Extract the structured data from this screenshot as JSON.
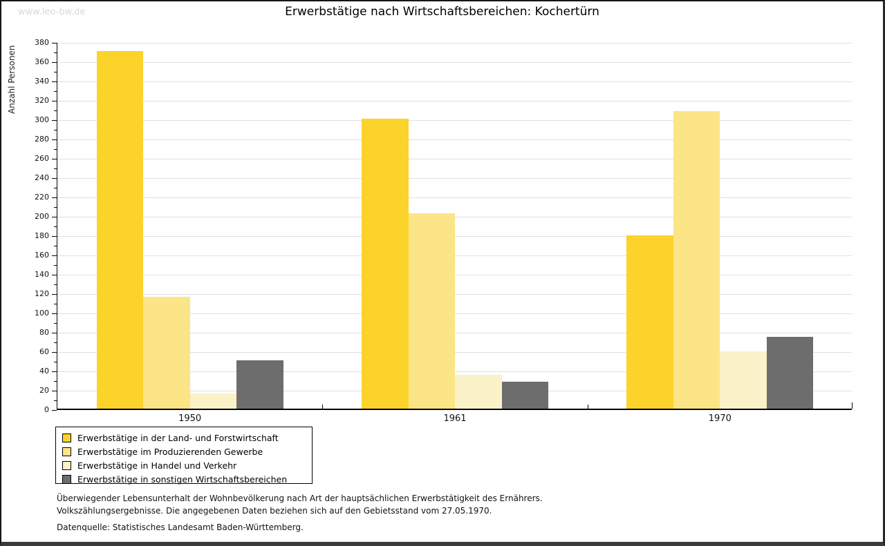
{
  "watermark": "www.leo-bw.de",
  "title": "Erwerbstätige nach Wirtschaftsbereichen: Kochertürn",
  "chart_data": {
    "type": "bar",
    "title": "Erwerbstätige nach Wirtschaftsbereichen: Kochertürn",
    "xlabel": "",
    "ylabel": "Anzahl Personen",
    "ylim": [
      0,
      380
    ],
    "ytick_major_step": 20,
    "ytick_minor_step": 10,
    "grid": true,
    "legend_position": "bottom-left",
    "categories": [
      "1950",
      "1961",
      "1970"
    ],
    "series": [
      {
        "name": "Erwerbstätige in der Land- und Forstwirtschaft",
        "color": "#FBD32B",
        "values": [
          370,
          300,
          179
        ]
      },
      {
        "name": "Erwerbstätige im Produzierenden Gewerbe",
        "color": "#FBE586",
        "values": [
          116,
          202,
          308
        ]
      },
      {
        "name": "Erwerbstätige in Handel und Verkehr",
        "color": "#FAF2C8",
        "values": [
          16,
          35,
          59
        ]
      },
      {
        "name": "Erwerbstätige in sonstigen Wirtschaftsbereichen",
        "color": "#6D6D6D",
        "values": [
          50,
          28,
          74
        ]
      }
    ]
  },
  "footer": {
    "line1": "Überwiegender Lebensunterhalt der Wohnbevölkerung nach Art der hauptsächlichen Erwerbstätigkeit des Ernährers.",
    "line2": "Volkszählungsergebnisse. Die angegebenen Daten beziehen sich auf den Gebietsstand vom 27.05.1970.",
    "source": "Datenquelle: Statistisches Landesamt Baden-Württemberg."
  },
  "colors": {
    "grid": "#E0E0E0",
    "axis": "#000000",
    "watermark": "#D9D9D9"
  }
}
